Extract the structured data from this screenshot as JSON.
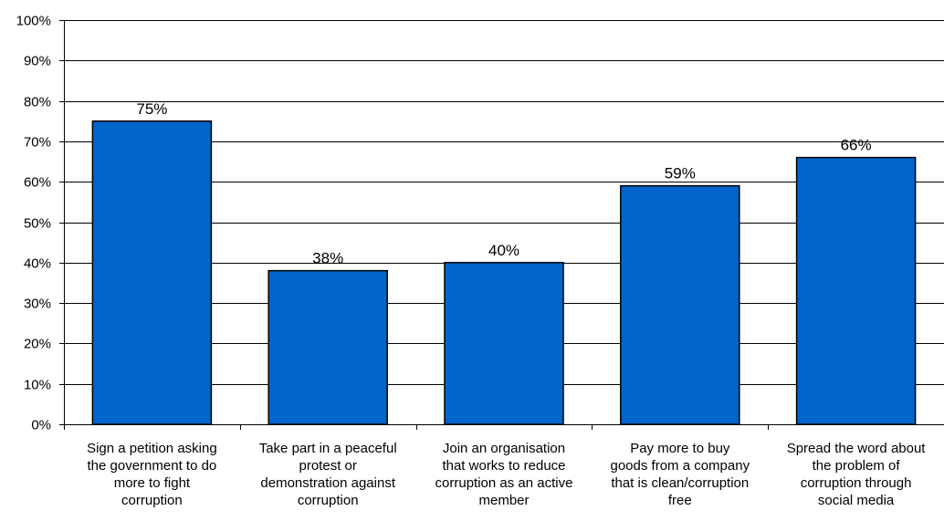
{
  "chart_data": {
    "type": "bar",
    "categories": [
      "Sign a petition asking the government to do more to fight corruption",
      "Take part in a peaceful protest or demonstration against corruption",
      "Join an organisation that works to reduce corruption as an active member",
      "Pay more to buy goods from a company that is clean/corruption free",
      "Spread the word about the problem of corruption through social media"
    ],
    "category_lines": [
      [
        "Sign a petition asking",
        "the government to do",
        "more to fight",
        "corruption"
      ],
      [
        "Take part in a peaceful",
        "protest or",
        "demonstration against",
        "corruption"
      ],
      [
        "Join an organisation",
        "that works to reduce",
        "corruption as an active",
        "member"
      ],
      [
        "Pay more to buy",
        "goods from a company",
        "that is clean/corruption",
        "free"
      ],
      [
        "Spread the word about",
        "the problem of",
        "corruption through",
        "social media"
      ]
    ],
    "values": [
      75,
      38,
      40,
      59,
      66
    ],
    "data_labels": [
      "75%",
      "38%",
      "40%",
      "59%",
      "66%"
    ],
    "ylim": [
      0,
      100
    ],
    "yticks": [
      0,
      10,
      20,
      30,
      40,
      50,
      60,
      70,
      80,
      90,
      100
    ],
    "ytick_labels": [
      "0%",
      "10%",
      "20%",
      "30%",
      "40%",
      "50%",
      "60%",
      "70%",
      "80%",
      "90%",
      "100%"
    ],
    "grid": true,
    "bar_color": "#0066CC",
    "bar_edge_color": "#000000",
    "title": "",
    "xlabel": "",
    "ylabel": ""
  }
}
